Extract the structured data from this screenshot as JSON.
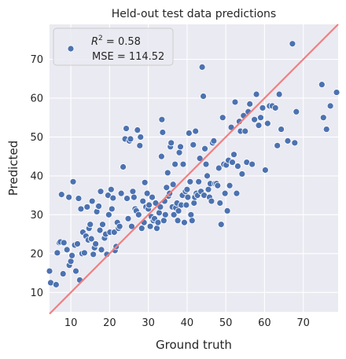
{
  "chart_data": {
    "type": "scatter",
    "title": "Held-out test data predictions",
    "xlabel": "Ground truth",
    "ylabel": "Predicted",
    "xlim": [
      4.5,
      79
    ],
    "ylim": [
      5,
      79
    ],
    "xticks": [
      10,
      20,
      30,
      40,
      50,
      60,
      70
    ],
    "yticks": [
      10,
      20,
      30,
      40,
      50,
      60,
      70
    ],
    "grid": true,
    "legend_position": "top-left",
    "legend": {
      "r2_label": "R",
      "r2_sup": "2",
      "r2_value": " = 0.58",
      "mse_text": "MSE = 114.52"
    },
    "colors": {
      "background": "#eaeaf2",
      "grid": "#ffffff",
      "marker": "#4c72b0",
      "marker_edge": "#ffffff",
      "identity_line": "#f08080"
    },
    "identity_line": {
      "x": [
        4.5,
        79
      ],
      "y": [
        4.5,
        79
      ]
    },
    "points": [
      [
        4.5,
        15.5
      ],
      [
        4.8,
        12.5
      ],
      [
        6.2,
        12.0
      ],
      [
        6.5,
        20.2
      ],
      [
        7.0,
        22.8
      ],
      [
        7.3,
        23.0
      ],
      [
        7.6,
        35.2
      ],
      [
        8.0,
        14.8
      ],
      [
        8.2,
        22.8
      ],
      [
        9.0,
        21.0
      ],
      [
        9.5,
        34.5
      ],
      [
        9.6,
        17.0
      ],
      [
        10.0,
        18.0
      ],
      [
        10.3,
        19.5
      ],
      [
        10.6,
        38.5
      ],
      [
        11.0,
        22.2
      ],
      [
        11.3,
        15.5
      ],
      [
        11.7,
        22.5
      ],
      [
        12.0,
        34.2
      ],
      [
        12.3,
        13.2
      ],
      [
        12.6,
        31.5
      ],
      [
        12.9,
        20.0
      ],
      [
        13.1,
        25.5
      ],
      [
        13.5,
        20.2
      ],
      [
        13.9,
        24.5
      ],
      [
        14.2,
        32.0
      ],
      [
        14.5,
        23.5
      ],
      [
        14.7,
        26.5
      ],
      [
        15.0,
        27.5
      ],
      [
        15.3,
        23.8
      ],
      [
        15.5,
        33.5
      ],
      [
        15.8,
        19.8
      ],
      [
        16.1,
        21.5
      ],
      [
        16.4,
        22.5
      ],
      [
        16.7,
        30.8
      ],
      [
        17.0,
        32.2
      ],
      [
        17.2,
        32.2
      ],
      [
        17.5,
        26.0
      ],
      [
        17.7,
        36.0
      ],
      [
        17.9,
        21.0
      ],
      [
        18.2,
        27.5
      ],
      [
        18.5,
        24.0
      ],
      [
        18.7,
        24.0
      ],
      [
        19.0,
        25.0
      ],
      [
        19.3,
        19.8
      ],
      [
        19.6,
        35.0
      ],
      [
        19.8,
        30.0
      ],
      [
        20.1,
        25.5
      ],
      [
        20.4,
        36.5
      ],
      [
        20.6,
        31.5
      ],
      [
        20.9,
        34.3
      ],
      [
        21.2,
        25.5
      ],
      [
        21.4,
        20.8
      ],
      [
        21.7,
        21.8
      ],
      [
        22.0,
        28.0
      ],
      [
        22.3,
        26.5
      ],
      [
        22.6,
        27.0
      ],
      [
        23.0,
        35.5
      ],
      [
        23.5,
        42.3
      ],
      [
        24.0,
        49.5
      ],
      [
        24.3,
        52.2
      ],
      [
        24.5,
        34.2
      ],
      [
        24.8,
        29.0
      ],
      [
        25.1,
        49.0
      ],
      [
        25.4,
        49.5
      ],
      [
        25.7,
        27.0
      ],
      [
        26.0,
        36.0
      ],
      [
        26.3,
        34.5
      ],
      [
        26.6,
        31.5
      ],
      [
        26.9,
        31.0
      ],
      [
        27.2,
        51.8
      ],
      [
        27.5,
        30.0
      ],
      [
        27.8,
        47.8
      ],
      [
        28.0,
        50.0
      ],
      [
        28.3,
        26.5
      ],
      [
        28.6,
        33.5
      ],
      [
        28.9,
        28.0
      ],
      [
        29.1,
        38.3
      ],
      [
        29.4,
        32.0
      ],
      [
        29.7,
        35.5
      ],
      [
        30.0,
        31.5
      ],
      [
        30.2,
        32.5
      ],
      [
        30.5,
        27.0
      ],
      [
        30.8,
        29.5
      ],
      [
        31.0,
        34.5
      ],
      [
        31.3,
        28.5
      ],
      [
        31.6,
        29.0
      ],
      [
        31.9,
        33.0
      ],
      [
        32.2,
        26.5
      ],
      [
        32.5,
        28.0
      ],
      [
        32.8,
        30.5
      ],
      [
        33.1,
        32.0
      ],
      [
        33.4,
        45.0
      ],
      [
        33.5,
        54.5
      ],
      [
        33.7,
        51.2
      ],
      [
        34.0,
        28.5
      ],
      [
        34.2,
        33.5
      ],
      [
        34.4,
        30.0
      ],
      [
        34.7,
        37.0
      ],
      [
        35.0,
        40.8
      ],
      [
        35.2,
        34.8
      ],
      [
        35.5,
        35.5
      ],
      [
        35.7,
        47.5
      ],
      [
        35.9,
        48.5
      ],
      [
        36.2,
        32.0
      ],
      [
        36.4,
        37.8
      ],
      [
        36.6,
        30.0
      ],
      [
        36.9,
        43.0
      ],
      [
        37.1,
        31.8
      ],
      [
        37.4,
        33.0
      ],
      [
        37.6,
        28.5
      ],
      [
        37.8,
        31.0
      ],
      [
        38.0,
        46.0
      ],
      [
        38.3,
        47.5
      ],
      [
        38.5,
        32.5
      ],
      [
        38.8,
        35.0
      ],
      [
        39.0,
        43.0
      ],
      [
        39.3,
        28.0
      ],
      [
        39.6,
        36.0
      ],
      [
        39.8,
        32.5
      ],
      [
        40.0,
        36.5
      ],
      [
        40.2,
        34.5
      ],
      [
        40.5,
        51.0
      ],
      [
        40.8,
        38.5
      ],
      [
        41.0,
        30.0
      ],
      [
        41.3,
        28.5
      ],
      [
        41.6,
        48.0
      ],
      [
        41.8,
        33.0
      ],
      [
        42.0,
        34.5
      ],
      [
        42.2,
        51.5
      ],
      [
        42.4,
        35.5
      ],
      [
        42.7,
        35.0
      ],
      [
        43.0,
        38.5
      ],
      [
        43.3,
        44.5
      ],
      [
        43.6,
        36.0
      ],
      [
        43.9,
        68.0
      ],
      [
        44.2,
        60.5
      ],
      [
        44.4,
        35.0
      ],
      [
        44.6,
        47.0
      ],
      [
        44.9,
        43.0
      ],
      [
        45.2,
        40.0
      ],
      [
        45.5,
        36.5
      ],
      [
        45.8,
        34.5
      ],
      [
        46.0,
        38.0
      ],
      [
        46.3,
        33.5
      ],
      [
        46.6,
        48.5
      ],
      [
        46.9,
        49.0
      ],
      [
        47.2,
        38.0
      ],
      [
        47.6,
        38.0
      ],
      [
        47.9,
        37.5
      ],
      [
        48.2,
        42.0
      ],
      [
        48.5,
        33.0
      ],
      [
        48.8,
        27.5
      ],
      [
        49.2,
        55.0
      ],
      [
        49.5,
        43.0
      ],
      [
        49.8,
        35.5
      ],
      [
        50.1,
        42.8
      ],
      [
        50.4,
        31.0
      ],
      [
        50.7,
        44.0
      ],
      [
        51.0,
        37.5
      ],
      [
        51.4,
        52.5
      ],
      [
        51.7,
        43.5
      ],
      [
        52.1,
        45.5
      ],
      [
        52.4,
        59.0
      ],
      [
        52.8,
        35.5
      ],
      [
        53.1,
        42.5
      ],
      [
        53.5,
        54.0
      ],
      [
        53.8,
        51.5
      ],
      [
        54.2,
        40.5
      ],
      [
        54.6,
        55.5
      ],
      [
        55.0,
        51.5
      ],
      [
        55.4,
        43.5
      ],
      [
        55.8,
        56.5
      ],
      [
        56.2,
        58.5
      ],
      [
        56.8,
        43.0
      ],
      [
        57.4,
        54.5
      ],
      [
        57.9,
        61.0
      ],
      [
        58.5,
        53.0
      ],
      [
        59.0,
        55.0
      ],
      [
        59.5,
        57.5
      ],
      [
        60.2,
        41.5
      ],
      [
        60.8,
        53.5
      ],
      [
        61.3,
        58.0
      ],
      [
        62.0,
        58.0
      ],
      [
        62.8,
        57.5
      ],
      [
        63.3,
        47.8
      ],
      [
        63.8,
        61.0
      ],
      [
        64.3,
        52.0
      ],
      [
        66.0,
        49.0
      ],
      [
        67.2,
        74.0
      ],
      [
        67.8,
        48.5
      ],
      [
        68.2,
        56.5
      ],
      [
        74.8,
        63.5
      ],
      [
        75.2,
        55.0
      ],
      [
        76.0,
        52.0
      ],
      [
        77.0,
        58.0
      ],
      [
        78.6,
        61.5
      ]
    ]
  }
}
